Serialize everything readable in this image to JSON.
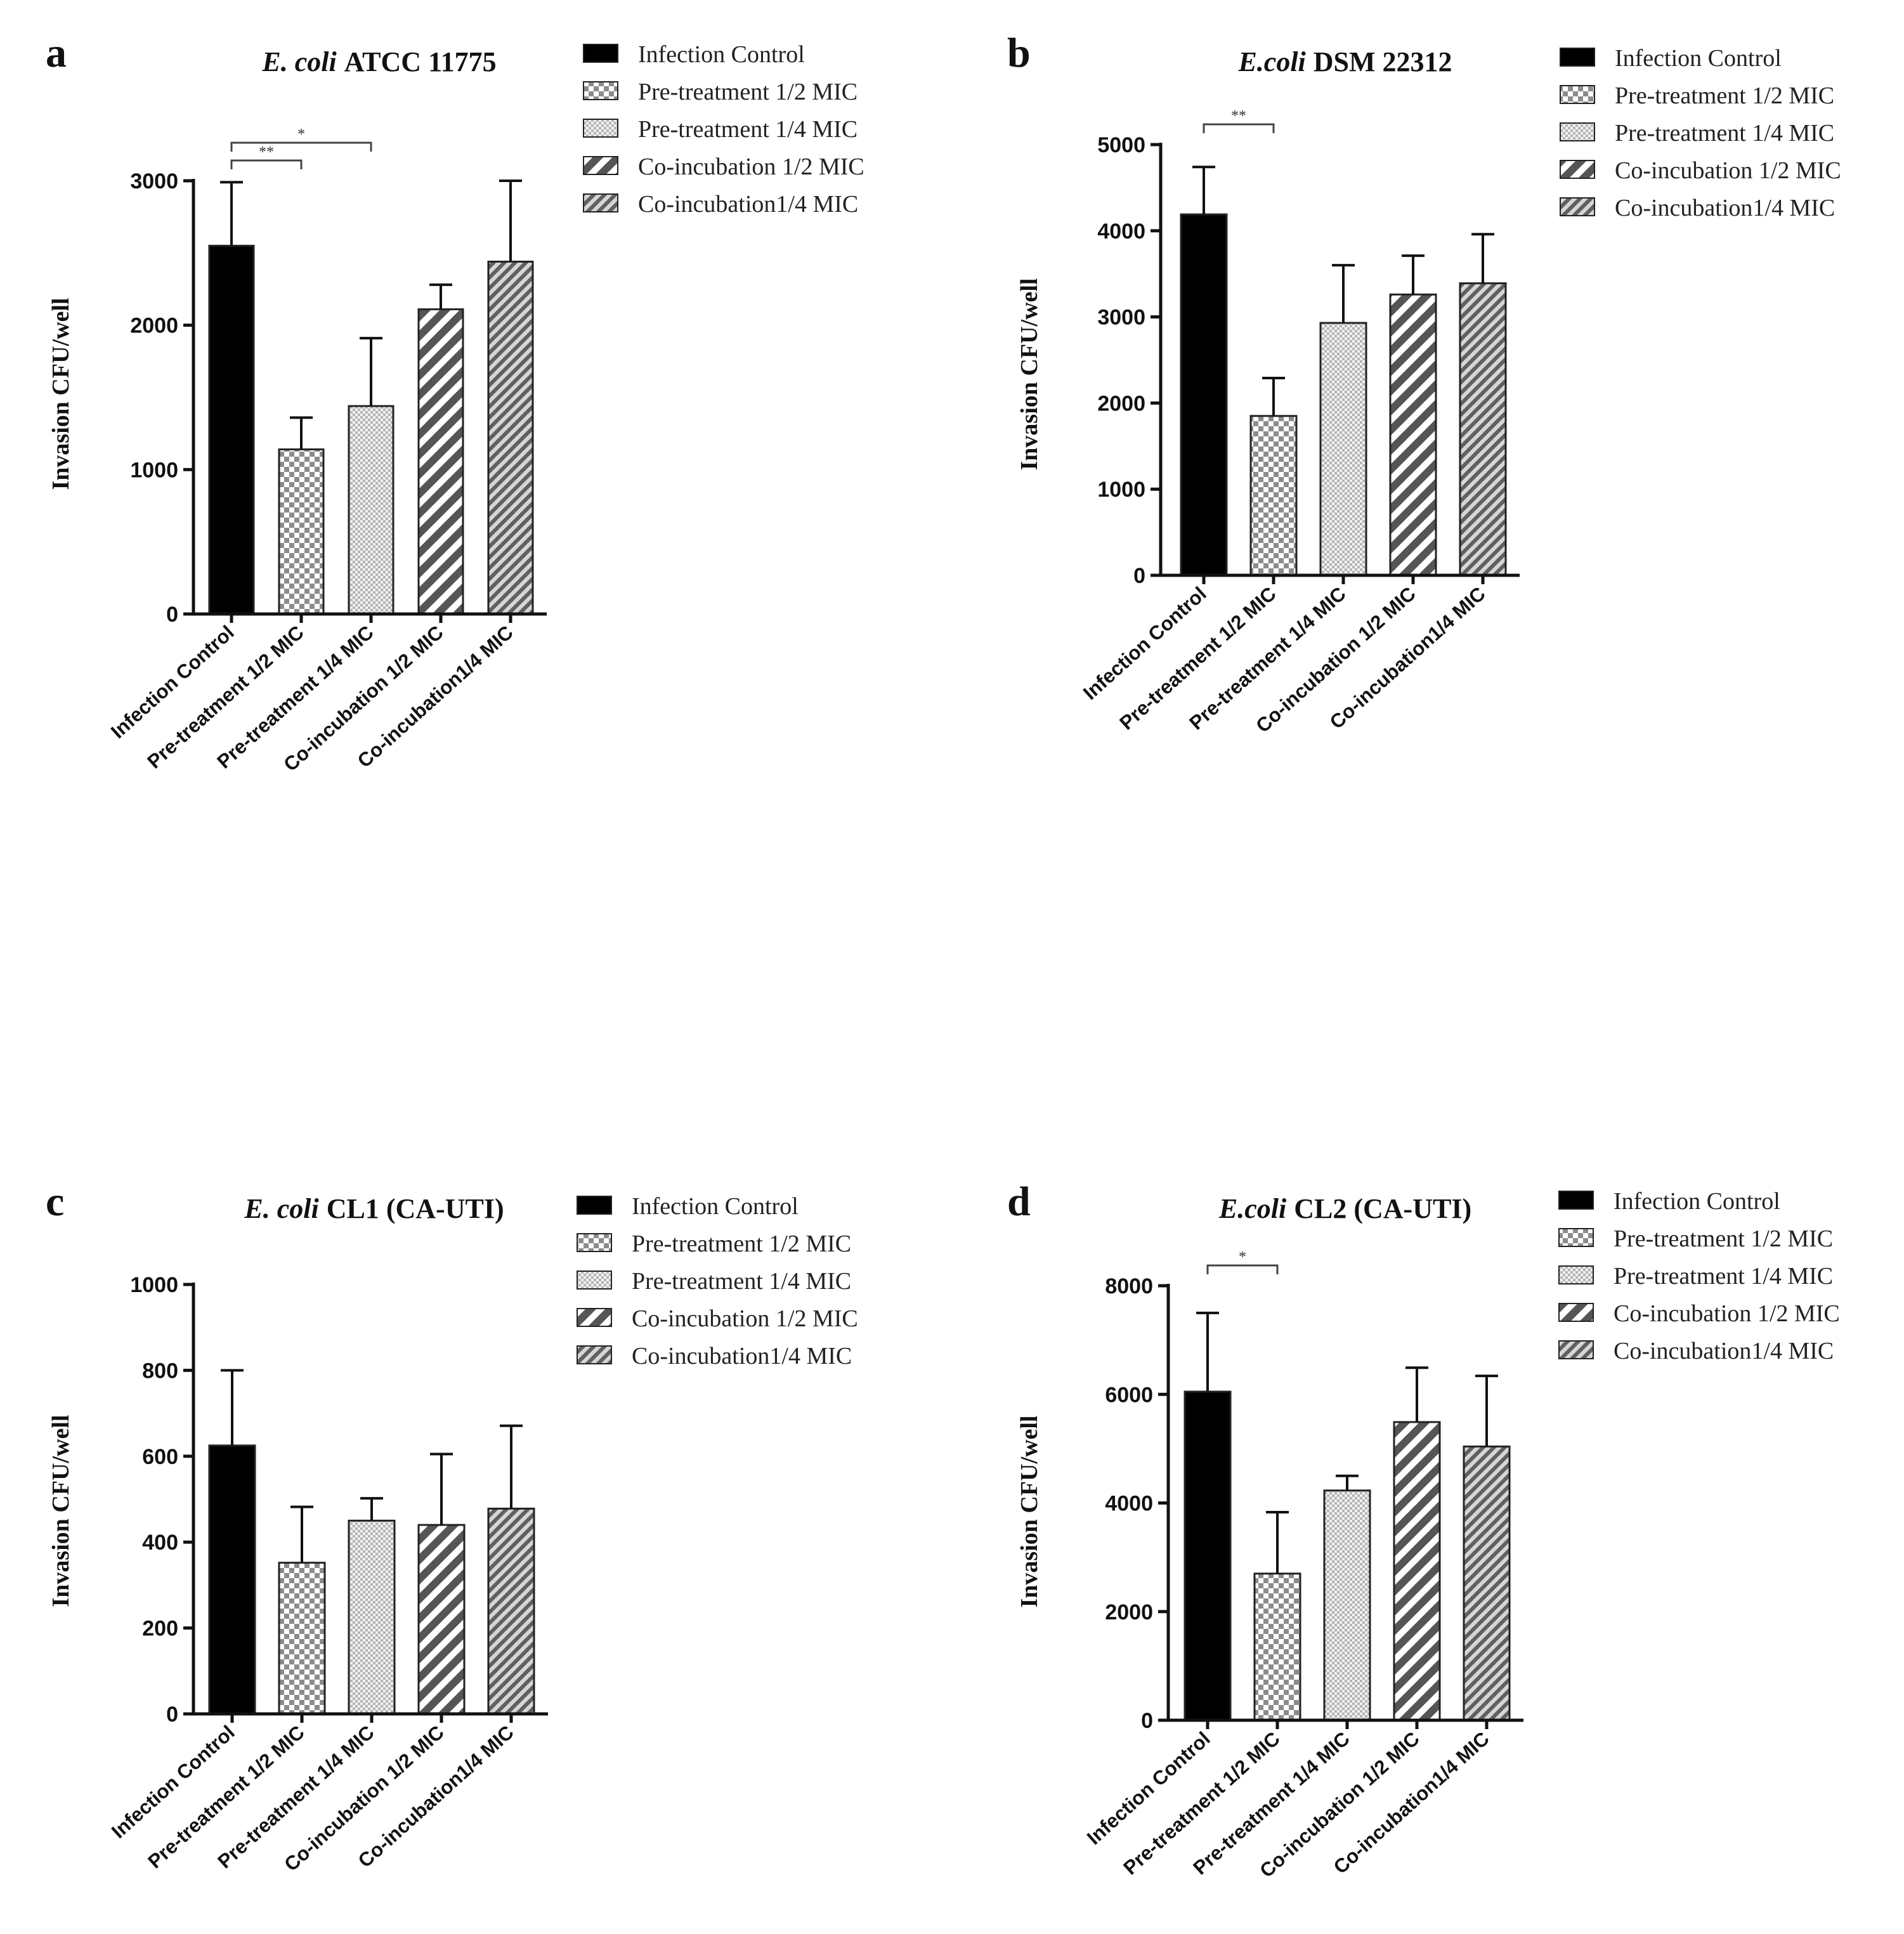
{
  "colors": {
    "axis": "#111111",
    "bar_solid": "#000000",
    "pattern_fg": "#555555",
    "pattern_bg": "#ffffff"
  },
  "legend_items": [
    {
      "label": "Infection Control",
      "pattern": "solid"
    },
    {
      "label": "Pre-treatment 1/2 MIC",
      "pattern": "checker"
    },
    {
      "label": "Pre-treatment 1/4 MIC",
      "pattern": "dots"
    },
    {
      "label": "Co-incubation 1/2 MIC",
      "pattern": "stripe-wide"
    },
    {
      "label": "Co-incubation1/4 MIC",
      "pattern": "stripe-narrow"
    }
  ],
  "chart_data": [
    {
      "type": "bar",
      "panel": "a",
      "title_italic": "E. coli",
      "title_rest": "ATCC 11775",
      "ylabel": "Invasion CFU/well",
      "xlabel": "",
      "categories": [
        "Infection Control",
        "Pre-treatment 1/2 MIC",
        "Pre-treatment 1/4 MIC",
        "Co-incubation 1/2 MIC",
        "Co-incubation1/4 MIC"
      ],
      "values": [
        2550,
        1140,
        1440,
        2110,
        2440
      ],
      "errors": [
        440,
        220,
        470,
        170,
        560
      ],
      "ylim": [
        0,
        3000
      ],
      "yticks": [
        0,
        1000,
        2000,
        3000
      ],
      "significance": [
        {
          "from": 0,
          "to": 1,
          "label": "**",
          "level": 0
        },
        {
          "from": 0,
          "to": 2,
          "label": "*",
          "level": 1
        }
      ]
    },
    {
      "type": "bar",
      "panel": "b",
      "title_italic": "E.coli",
      "title_rest": "DSM 22312",
      "ylabel": "Invasion CFU/well",
      "xlabel": "",
      "categories": [
        "Infection Control",
        "Pre-treatment 1/2 MIC",
        "Pre-treatment 1/4 MIC",
        "Co-incubation 1/2 MIC",
        "Co-incubation1/4 MIC"
      ],
      "values": [
        4190,
        1850,
        2930,
        3260,
        3390
      ],
      "errors": [
        550,
        440,
        670,
        450,
        570
      ],
      "ylim": [
        0,
        5000
      ],
      "yticks": [
        0,
        1000,
        2000,
        3000,
        4000,
        5000
      ],
      "significance": [
        {
          "from": 0,
          "to": 1,
          "label": "**",
          "level": 0
        }
      ]
    },
    {
      "type": "bar",
      "panel": "c",
      "title_italic": "E. coli",
      "title_rest": "CL1 (CA-UTI)",
      "ylabel": "Invasion CFU/well",
      "xlabel": "",
      "categories": [
        "Infection Control",
        "Pre-treatment 1/2 MIC",
        "Pre-treatment 1/4 MIC",
        "Co-incubation 1/2 MIC",
        "Co-incubation1/4 MIC"
      ],
      "values": [
        625,
        352,
        450,
        440,
        478
      ],
      "errors": [
        175,
        130,
        52,
        165,
        193
      ],
      "ylim": [
        0,
        1000
      ],
      "yticks": [
        0,
        200,
        400,
        600,
        800,
        1000
      ],
      "significance": []
    },
    {
      "type": "bar",
      "panel": "d",
      "title_italic": "E.coli",
      "title_rest": "CL2 (CA-UTI)",
      "ylabel": "Invasion CFU/well",
      "xlabel": "",
      "categories": [
        "Infection Control",
        "Pre-treatment 1/2 MIC",
        "Pre-treatment 1/4 MIC",
        "Co-incubation 1/2 MIC",
        "Co-incubation1/4 MIC"
      ],
      "values": [
        6050,
        2700,
        4230,
        5490,
        5040
      ],
      "errors": [
        1450,
        1130,
        270,
        1000,
        1300
      ],
      "ylim": [
        0,
        8000
      ],
      "yticks": [
        0,
        2000,
        4000,
        6000,
        8000
      ],
      "significance": [
        {
          "from": 0,
          "to": 1,
          "label": "*",
          "level": 0
        }
      ]
    }
  ]
}
